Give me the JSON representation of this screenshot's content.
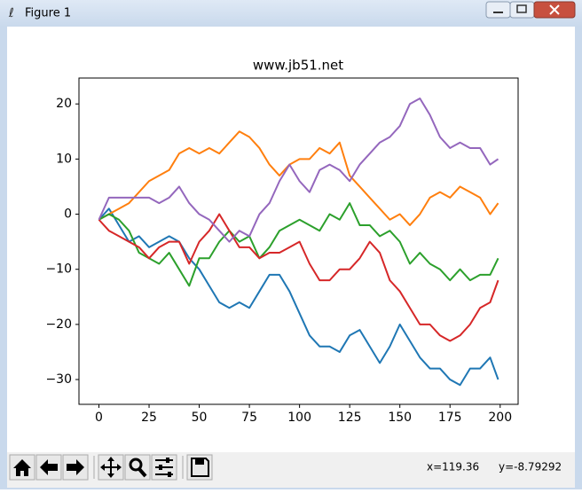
{
  "window": {
    "title": "Figure 1"
  },
  "status": {
    "x": "x=119.36",
    "y": "y=-8.79292"
  },
  "chart_data": {
    "type": "line",
    "title": "www.jb51.net",
    "x": [
      0,
      5,
      10,
      15,
      20,
      25,
      30,
      35,
      40,
      45,
      50,
      55,
      60,
      65,
      70,
      75,
      80,
      85,
      90,
      95,
      100,
      105,
      110,
      115,
      120,
      125,
      130,
      135,
      140,
      145,
      150,
      155,
      160,
      165,
      170,
      175,
      180,
      185,
      190,
      195,
      199
    ],
    "series": [
      {
        "color": "#1f77b4",
        "values": [
          -1,
          1,
          -2,
          -5,
          -4,
          -6,
          -5,
          -4,
          -5,
          -8,
          -10,
          -13,
          -16,
          -17,
          -16,
          -17,
          -14,
          -11,
          -11,
          -14,
          -18,
          -22,
          -24,
          -24,
          -25,
          -22,
          -21,
          -24,
          -27,
          -24,
          -20,
          -23,
          -26,
          -28,
          -28,
          -30,
          -31,
          -28,
          -28,
          -26,
          -30
        ]
      },
      {
        "color": "#ff7f0e",
        "values": [
          -1,
          0,
          1,
          2,
          4,
          6,
          7,
          8,
          11,
          12,
          11,
          12,
          11,
          13,
          15,
          14,
          12,
          9,
          7,
          9,
          10,
          10,
          12,
          11,
          13,
          7,
          5,
          3,
          1,
          -1,
          0,
          -2,
          0,
          3,
          4,
          3,
          5,
          4,
          3,
          0,
          2
        ]
      },
      {
        "color": "#2ca02c",
        "values": [
          -1,
          0,
          -1,
          -3,
          -7,
          -8,
          -9,
          -7,
          -10,
          -13,
          -8,
          -8,
          -5,
          -3,
          -5,
          -4,
          -8,
          -6,
          -3,
          -2,
          -1,
          -2,
          -3,
          0,
          -1,
          2,
          -2,
          -2,
          -4,
          -3,
          -5,
          -9,
          -7,
          -9,
          -10,
          -12,
          -10,
          -12,
          -11,
          -11,
          -8
        ]
      },
      {
        "color": "#d62728",
        "values": [
          -1,
          -3,
          -4,
          -5,
          -6,
          -8,
          -6,
          -5,
          -5,
          -9,
          -5,
          -3,
          0,
          -3,
          -6,
          -6,
          -8,
          -7,
          -7,
          -6,
          -5,
          -9,
          -12,
          -12,
          -10,
          -10,
          -8,
          -5,
          -7,
          -12,
          -14,
          -17,
          -20,
          -20,
          -22,
          -23,
          -22,
          -20,
          -17,
          -16,
          -12
        ]
      },
      {
        "color": "#9467bd",
        "values": [
          -1,
          3,
          3,
          3,
          3,
          3,
          2,
          3,
          5,
          2,
          0,
          -1,
          -3,
          -5,
          -3,
          -4,
          0,
          2,
          6,
          9,
          6,
          4,
          8,
          9,
          8,
          6,
          9,
          11,
          13,
          14,
          16,
          20,
          21,
          18,
          14,
          12,
          13,
          12,
          12,
          9,
          10
        ]
      }
    ],
    "xlim": [
      -9.95,
      208.95
    ],
    "ylim": [
      -34.5,
      24.7
    ],
    "xticks": [
      0,
      25,
      50,
      75,
      100,
      125,
      150,
      175,
      200
    ],
    "yticks": [
      {
        "value": -30,
        "label": "−30"
      },
      {
        "value": -20,
        "label": "−20"
      },
      {
        "value": -10,
        "label": "−10"
      },
      0,
      10,
      20
    ]
  }
}
